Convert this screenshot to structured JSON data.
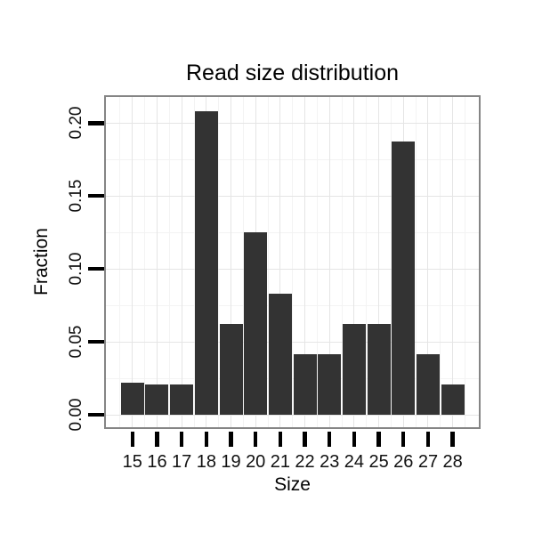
{
  "figure_title": "Read size distribution",
  "chart_data": {
    "type": "bar",
    "title": "Read size distribution",
    "xlabel": "Size",
    "ylabel": "Fraction",
    "categories": [
      "15",
      "16",
      "17",
      "18",
      "19",
      "20",
      "21",
      "22",
      "23",
      "24",
      "25",
      "26",
      "27",
      "28"
    ],
    "values": [
      0.0222,
      0.0208,
      0.0208,
      0.2083,
      0.0625,
      0.125,
      0.0833,
      0.0417,
      0.0417,
      0.0625,
      0.0625,
      0.1875,
      0.0417,
      0.0208
    ],
    "y_axis": {
      "tick_values": [
        0,
        0.05,
        0.1,
        0.15,
        0.2
      ],
      "tick_labels": [
        "0.00",
        "0.05",
        "0.10",
        "0.15",
        "0.20"
      ],
      "minor_tick_values": [
        0.025,
        0.075,
        0.125,
        0.175
      ],
      "range": [
        0,
        0.219
      ]
    },
    "grid": "major and minor gridlines on, light gray, white panel (theme_bw style)",
    "legend_position": "none",
    "colors": {
      "bar_fill": "#333333",
      "panel_border": "#858585",
      "grid_major": "#e5e5e5",
      "grid_minor": "#f3f3f3",
      "tick_mark": "#000000",
      "text": "#000000"
    }
  }
}
